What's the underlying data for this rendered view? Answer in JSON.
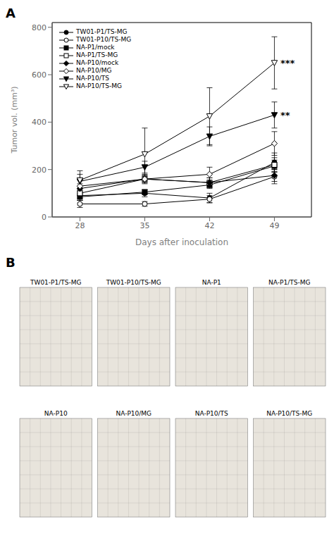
{
  "chart_data": [
    {
      "type": "line",
      "title": "A",
      "xlabel": "Days after inoculation",
      "ylabel": "Tumor vol. (mm³)",
      "x": [
        28,
        35,
        42,
        49
      ],
      "series": [
        {
          "name": "TW01-P1/TS-MG",
          "values": [
            90,
            100,
            80,
            230
          ],
          "errors": [
            20,
            15,
            20,
            40
          ],
          "marker": "circle",
          "color": "black"
        },
        {
          "name": "TW01-P10/TS-MG",
          "values": [
            55,
            55,
            75,
            170
          ],
          "errors": [
            15,
            10,
            15,
            30
          ],
          "marker": "circle-open",
          "color": "black"
        },
        {
          "name": "NA-P1/mock",
          "values": [
            85,
            105,
            135,
            215
          ],
          "errors": [
            15,
            10,
            15,
            25
          ],
          "marker": "square",
          "color": "black"
        },
        {
          "name": "NA-P1/TS-MG",
          "values": [
            100,
            160,
            145,
            220
          ],
          "errors": [
            20,
            15,
            20,
            30
          ],
          "marker": "square-open",
          "color": "black"
        },
        {
          "name": "NA-P10/mock",
          "values": [
            120,
            160,
            145,
            175
          ],
          "errors": [
            20,
            15,
            20,
            25
          ],
          "marker": "diamond",
          "color": "black"
        },
        {
          "name": "NA-P10/MG",
          "values": [
            130,
            160,
            180,
            310
          ],
          "errors": [
            25,
            20,
            30,
            50
          ],
          "marker": "diamond-open",
          "color": "black"
        },
        {
          "name": "NA-P10/TS",
          "values": [
            150,
            210,
            340,
            430
          ],
          "errors": [
            30,
            25,
            40,
            55
          ],
          "marker": "triangle-down",
          "color": "black"
        },
        {
          "name": "NA-P10/TS-MG",
          "values": [
            155,
            265,
            425,
            650
          ],
          "errors": [
            40,
            110,
            120,
            110
          ],
          "marker": "triangle-down-open",
          "color": "black"
        }
      ],
      "xlim": [
        25,
        53
      ],
      "ylim": [
        0,
        820
      ],
      "xticks": [
        28,
        35,
        42,
        49
      ],
      "yticks": [
        0,
        200,
        400,
        600,
        800
      ],
      "grid": false,
      "legend": "upper left",
      "annotations": [
        {
          "text": "***",
          "x": 49.5,
          "y": 650
        },
        {
          "text": "**",
          "x": 49.5,
          "y": 430
        }
      ]
    },
    {
      "type": "image",
      "title": "B",
      "categories": [
        "TW01-P1/TS-MG",
        "TW01-P10/TS-MG",
        "NA-P1",
        "NA-P1/TS-MG",
        "NA-P10",
        "NA-P10/MG",
        "NA-P10/TS",
        "NA-P10/TS-MG"
      ],
      "color": "#e8e4dc"
    }
  ]
}
